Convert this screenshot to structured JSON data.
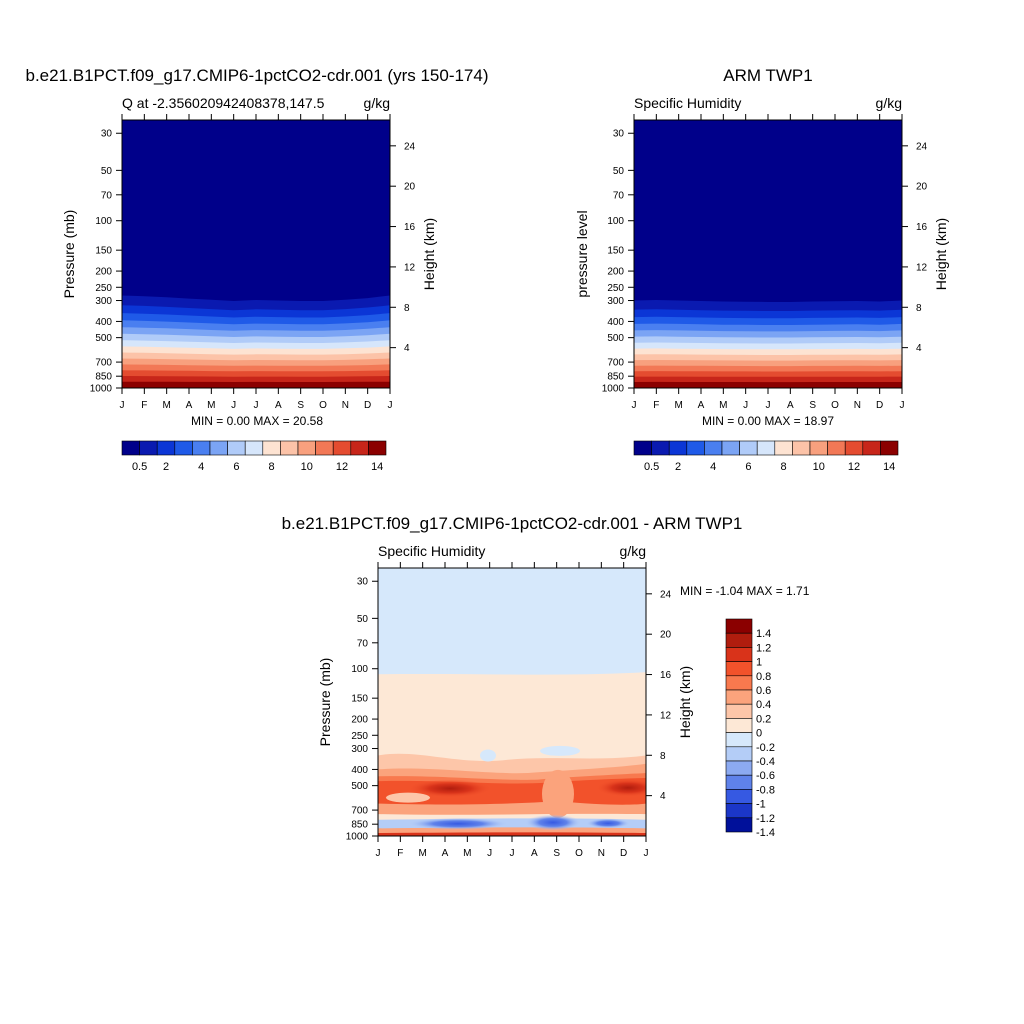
{
  "chart_data": [
    {
      "type": "heatmap",
      "title": "b.e21.B1PCT.f09_g17.CMIP6-1pctCO2-cdr.001 (yrs 150-174)",
      "subtitle_left": "Q at -2.356020942408378,147.5",
      "subtitle_right": "g/kg",
      "ylabel": "Pressure (mb)",
      "ylabel_right": "Height (km)",
      "x_ticks": [
        "J",
        "F",
        "M",
        "A",
        "M",
        "J",
        "J",
        "A",
        "S",
        "O",
        "N",
        "D",
        "J"
      ],
      "y_ticks": [
        30,
        50,
        70,
        100,
        150,
        200,
        250,
        300,
        400,
        500,
        700,
        850,
        1000
      ],
      "y_range": [
        25,
        1000
      ],
      "height_ticks": [
        24,
        20,
        16,
        12,
        8,
        4
      ],
      "stats": "MIN =   0.00 MAX =  20.58",
      "colorbar_labels": [
        "0.5",
        "2",
        "4",
        "6",
        "8",
        "10",
        "12",
        "14"
      ],
      "moisture_top_pressure_by_month": [
        280,
        283,
        287,
        292,
        297,
        302,
        298,
        300,
        302,
        302,
        297,
        290,
        280
      ]
    },
    {
      "type": "heatmap",
      "title": "ARM TWP1",
      "subtitle_left": "Specific Humidity",
      "subtitle_right": "g/kg",
      "ylabel": "pressure level",
      "ylabel_right": "Height (km)",
      "x_ticks": [
        "J",
        "F",
        "M",
        "A",
        "M",
        "J",
        "J",
        "A",
        "S",
        "O",
        "N",
        "D",
        "J"
      ],
      "y_ticks": [
        30,
        50,
        70,
        100,
        150,
        200,
        250,
        300,
        400,
        500,
        700,
        850,
        1000
      ],
      "y_range": [
        25,
        1000
      ],
      "height_ticks": [
        24,
        20,
        16,
        12,
        8,
        4
      ],
      "stats": "MIN =   0.00 MAX =  18.97",
      "colorbar_labels": [
        "0.5",
        "2",
        "4",
        "6",
        "8",
        "10",
        "12",
        "14"
      ],
      "moisture_top_pressure_by_month": [
        300,
        298,
        300,
        302,
        304,
        305,
        306,
        306,
        304,
        303,
        302,
        304,
        300
      ]
    },
    {
      "type": "heatmap",
      "title": "b.e21.B1PCT.f09_g17.CMIP6-1pctCO2-cdr.001 - ARM TWP1",
      "subtitle_left": "Specific Humidity",
      "subtitle_right": "g/kg",
      "ylabel": "Pressure (mb)",
      "ylabel_right": "Height (km)",
      "x_ticks": [
        "J",
        "F",
        "M",
        "A",
        "M",
        "J",
        "J",
        "A",
        "S",
        "O",
        "N",
        "D",
        "J"
      ],
      "y_ticks": [
        30,
        50,
        70,
        100,
        150,
        200,
        250,
        300,
        400,
        500,
        700,
        850,
        1000
      ],
      "y_range": [
        25,
        1000
      ],
      "height_ticks": [
        24,
        20,
        16,
        12,
        8,
        4
      ],
      "stats": "MIN =  -1.04 MAX =   1.71",
      "colorbar_labels": [
        "1.4",
        "1.2",
        "1",
        "0.8",
        "0.6",
        "0.4",
        "0.2",
        "0",
        "-0.2",
        "-0.4",
        "-0.6",
        "-0.8",
        "-1",
        "-1.2",
        "-1.4"
      ]
    }
  ],
  "colors": {
    "seq": [
      "#00008a",
      "#0a1ab0",
      "#0b36d6",
      "#1f5ae8",
      "#4a7ff0",
      "#7ba4f4",
      "#b0cbf8",
      "#d6e6fb",
      "#fde3d2",
      "#fcc3a8",
      "#f8a07e",
      "#f27856",
      "#e44c30",
      "#c7261a",
      "#8b0000"
    ],
    "div": [
      "#8b0000",
      "#b01d0e",
      "#d9331a",
      "#f2522b",
      "#f8794e",
      "#fba37c",
      "#fdc6a9",
      "#fde8d6",
      "#d6e8fb",
      "#b4cdf7",
      "#8caaf1",
      "#5f82ea",
      "#3659e2",
      "#1b36c8",
      "#00109a"
    ]
  }
}
